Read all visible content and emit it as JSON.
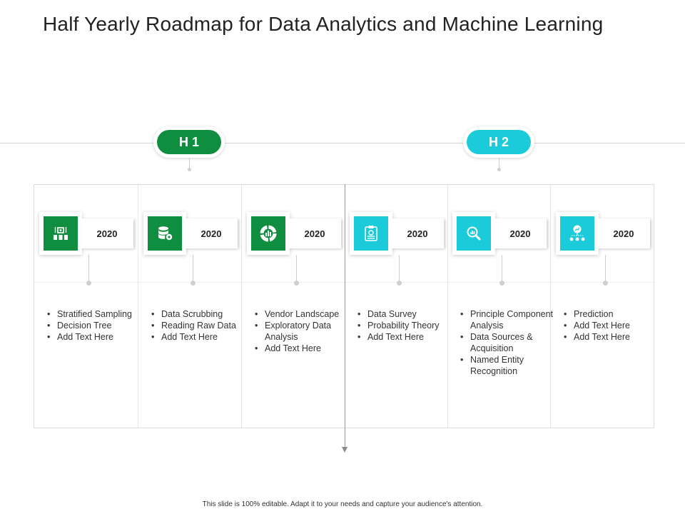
{
  "title": "Half Yearly Roadmap for Data Analytics and Machine Learning",
  "colors": {
    "green": "#0f8e3f",
    "teal": "#1ccbd9"
  },
  "halves": [
    {
      "label": "H 1",
      "color": "#0f8e3f"
    },
    {
      "label": "H 2",
      "color": "#1ccbd9"
    }
  ],
  "columns": [
    {
      "year": "2020",
      "icon": "data-cubes-icon",
      "color": "#0f8e3f",
      "items": [
        "Stratified Sampling",
        "Decision Tree",
        "Add Text Here"
      ]
    },
    {
      "year": "2020",
      "icon": "database-gear-icon",
      "color": "#0f8e3f",
      "items": [
        "Data Scrubbing",
        "Reading Raw Data",
        "Add Text Here"
      ]
    },
    {
      "year": "2020",
      "icon": "donut-chart-icon",
      "color": "#0f8e3f",
      "items": [
        "Vendor Landscape",
        "Exploratory Data Analysis",
        "Add Text Here"
      ]
    },
    {
      "year": "2020",
      "icon": "clipboard-icon",
      "color": "#1ccbd9",
      "items": [
        "Data Survey",
        "Probability Theory",
        "Add Text Here"
      ]
    },
    {
      "year": "2020",
      "icon": "magnifier-chart-icon",
      "color": "#1ccbd9",
      "items": [
        "Principle Component Analysis",
        "Data Sources & Acquisition",
        "Named Entity Recognition"
      ]
    },
    {
      "year": "2020",
      "icon": "network-chart-icon",
      "color": "#1ccbd9",
      "items": [
        "Prediction",
        "Add Text Here",
        "Add Text Here"
      ]
    }
  ],
  "footer": "This slide is 100% editable. Adapt it to your needs and capture your audience's attention."
}
